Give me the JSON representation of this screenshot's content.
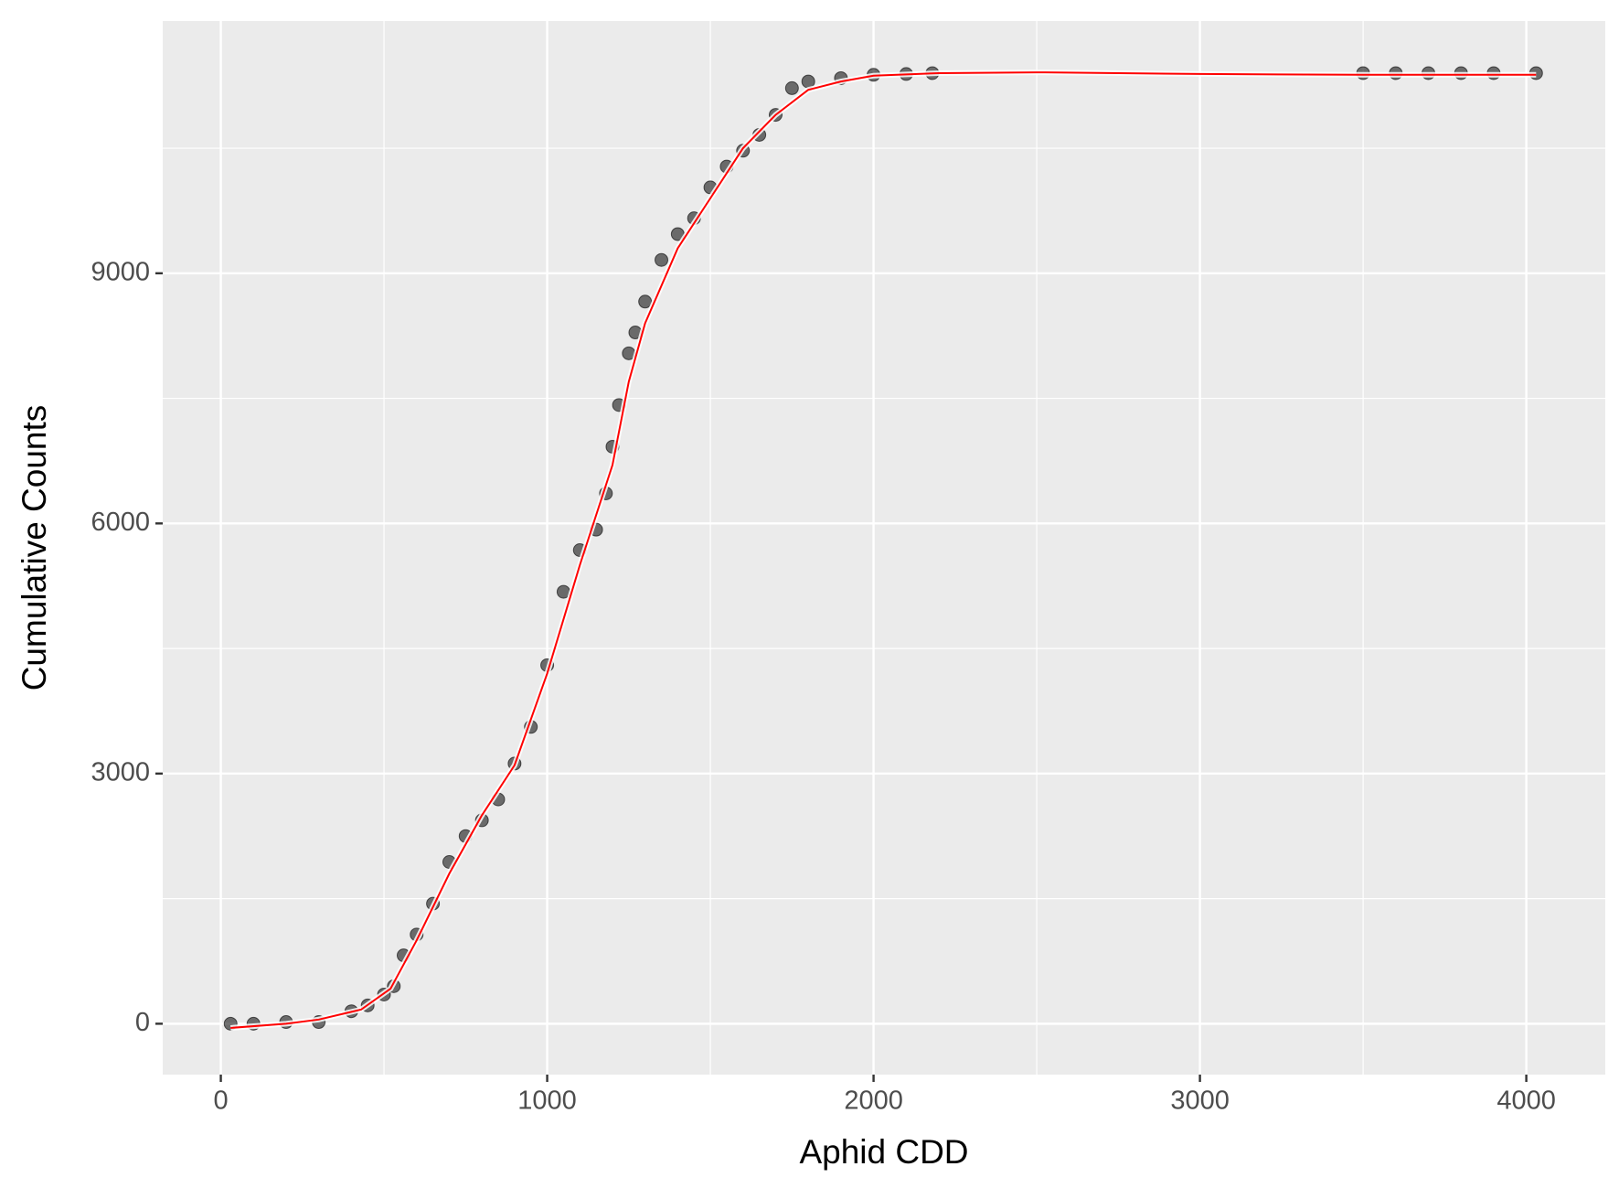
{
  "chart_data": {
    "type": "scatter",
    "x_label": "Aphid CDD",
    "y_label": "Cumulative Counts",
    "xlim": [
      -178,
      4242
    ],
    "ylim": [
      -610,
      12025
    ],
    "xticks": [
      0,
      1000,
      2000,
      3000,
      4000
    ],
    "yticks": [
      0,
      3000,
      6000,
      9000
    ],
    "x_minor_grid": [
      500,
      1500,
      2500,
      3500
    ],
    "y_minor_grid": [
      1500,
      4500,
      7500,
      10500
    ],
    "grid": true,
    "background": "#ebebeb",
    "series": [
      {
        "type": "scatter",
        "color": "#000000",
        "x": [
          30,
          100,
          200,
          300,
          400,
          450,
          500,
          530,
          560,
          600,
          650,
          700,
          750,
          800,
          850,
          900,
          950,
          1000,
          1050,
          1100,
          1150,
          1180,
          1200,
          1220,
          1250,
          1270,
          1300,
          1350,
          1400,
          1450,
          1500,
          1550,
          1600,
          1650,
          1700,
          1750,
          1800,
          1900,
          2000,
          2100,
          2180,
          3500,
          3600,
          3700,
          3800,
          3900,
          4030
        ],
        "values": [
          0,
          0,
          20,
          20,
          150,
          220,
          350,
          450,
          820,
          1070,
          1440,
          1940,
          2250,
          2440,
          2690,
          3120,
          3560,
          4300,
          5180,
          5680,
          5925,
          6360,
          6920,
          7420,
          8040,
          8290,
          8660,
          9160,
          9470,
          9660,
          10030,
          10280,
          10470,
          10660,
          10900,
          11220,
          11300,
          11340,
          11380,
          11390,
          11400,
          11400,
          11400,
          11400,
          11400,
          11400,
          11400
        ]
      },
      {
        "type": "line",
        "color": "#ff0000",
        "x": [
          30,
          200,
          300,
          430,
          520,
          600,
          700,
          800,
          900,
          1000,
          1100,
          1200,
          1250,
          1300,
          1400,
          1500,
          1600,
          1700,
          1800,
          1900,
          2000,
          2200,
          2500,
          3000,
          3500,
          4030
        ],
        "values": [
          -50,
          0,
          50,
          170,
          420,
          1000,
          1800,
          2500,
          3100,
          4200,
          5500,
          6700,
          7700,
          8400,
          9300,
          9900,
          10500,
          10900,
          11200,
          11300,
          11370,
          11400,
          11410,
          11390,
          11380,
          11380
        ]
      }
    ]
  }
}
